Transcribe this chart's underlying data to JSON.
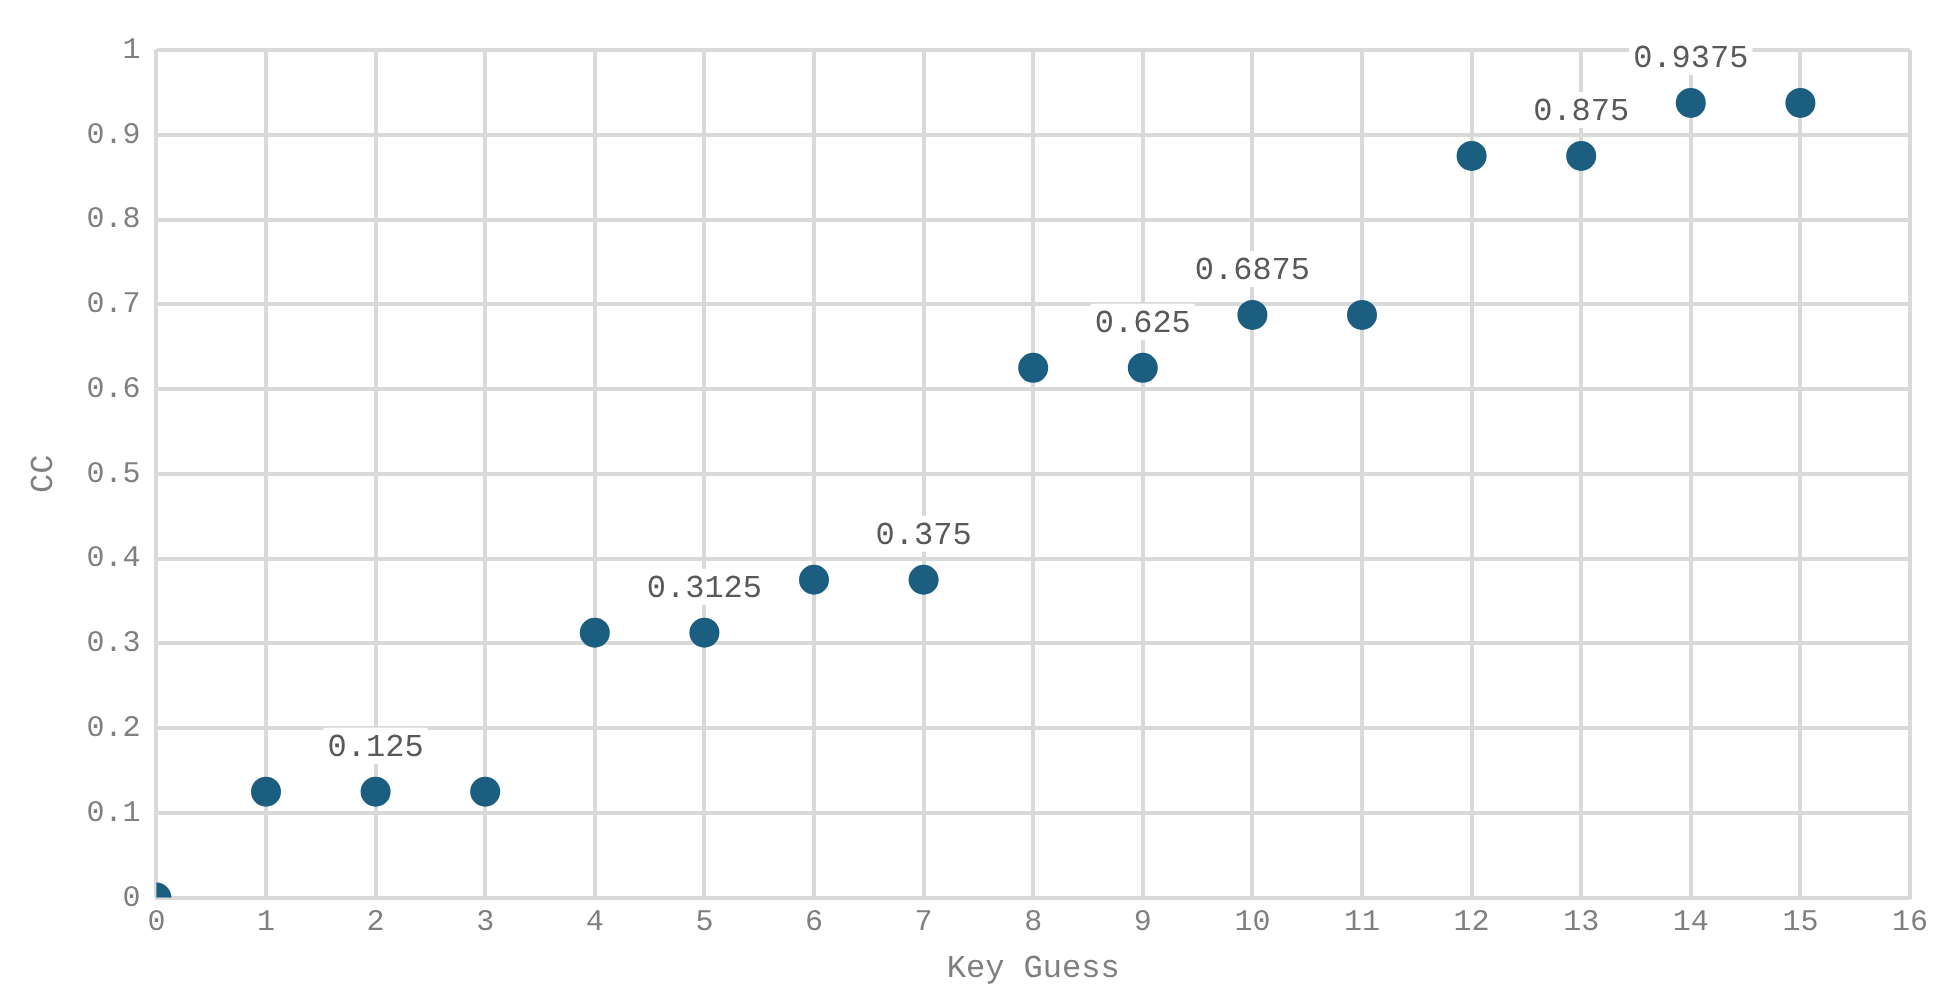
{
  "chart_data": {
    "type": "scatter",
    "xlabel": "Key Guess",
    "ylabel": "CC",
    "x": [
      0,
      1,
      2,
      3,
      4,
      5,
      6,
      7,
      8,
      9,
      10,
      11,
      12,
      13,
      14,
      15
    ],
    "series": [
      {
        "color": "#1b5e80",
        "values": [
          0,
          0.125,
          0.125,
          0.125,
          0.3125,
          0.3125,
          0.375,
          0.375,
          0.625,
          0.625,
          0.6875,
          0.6875,
          0.875,
          0.875,
          0.9375,
          0.9375
        ]
      }
    ],
    "xlim": [
      0,
      16
    ],
    "xticks": [
      0,
      1,
      2,
      3,
      4,
      5,
      6,
      7,
      8,
      9,
      10,
      11,
      12,
      13,
      14,
      15,
      16
    ],
    "ylim": [
      0,
      1
    ],
    "yticks": [
      0,
      0.1,
      0.2,
      0.3,
      0.4,
      0.5,
      0.6,
      0.7,
      0.8,
      0.9,
      1
    ],
    "grid": true,
    "legend": false,
    "marker": "circle",
    "annotations": [
      {
        "text": "0.125",
        "x": 2,
        "y": 0.125
      },
      {
        "text": "0.3125",
        "x": 5,
        "y": 0.3125
      },
      {
        "text": "0.375",
        "x": 7,
        "y": 0.375
      },
      {
        "text": "0.625",
        "x": 9,
        "y": 0.625
      },
      {
        "text": "0.6875",
        "x": 10,
        "y": 0.6875
      },
      {
        "text": "0.875",
        "x": 13,
        "y": 0.875
      },
      {
        "text": "0.9375",
        "x": 14,
        "y": 0.9375
      }
    ]
  }
}
